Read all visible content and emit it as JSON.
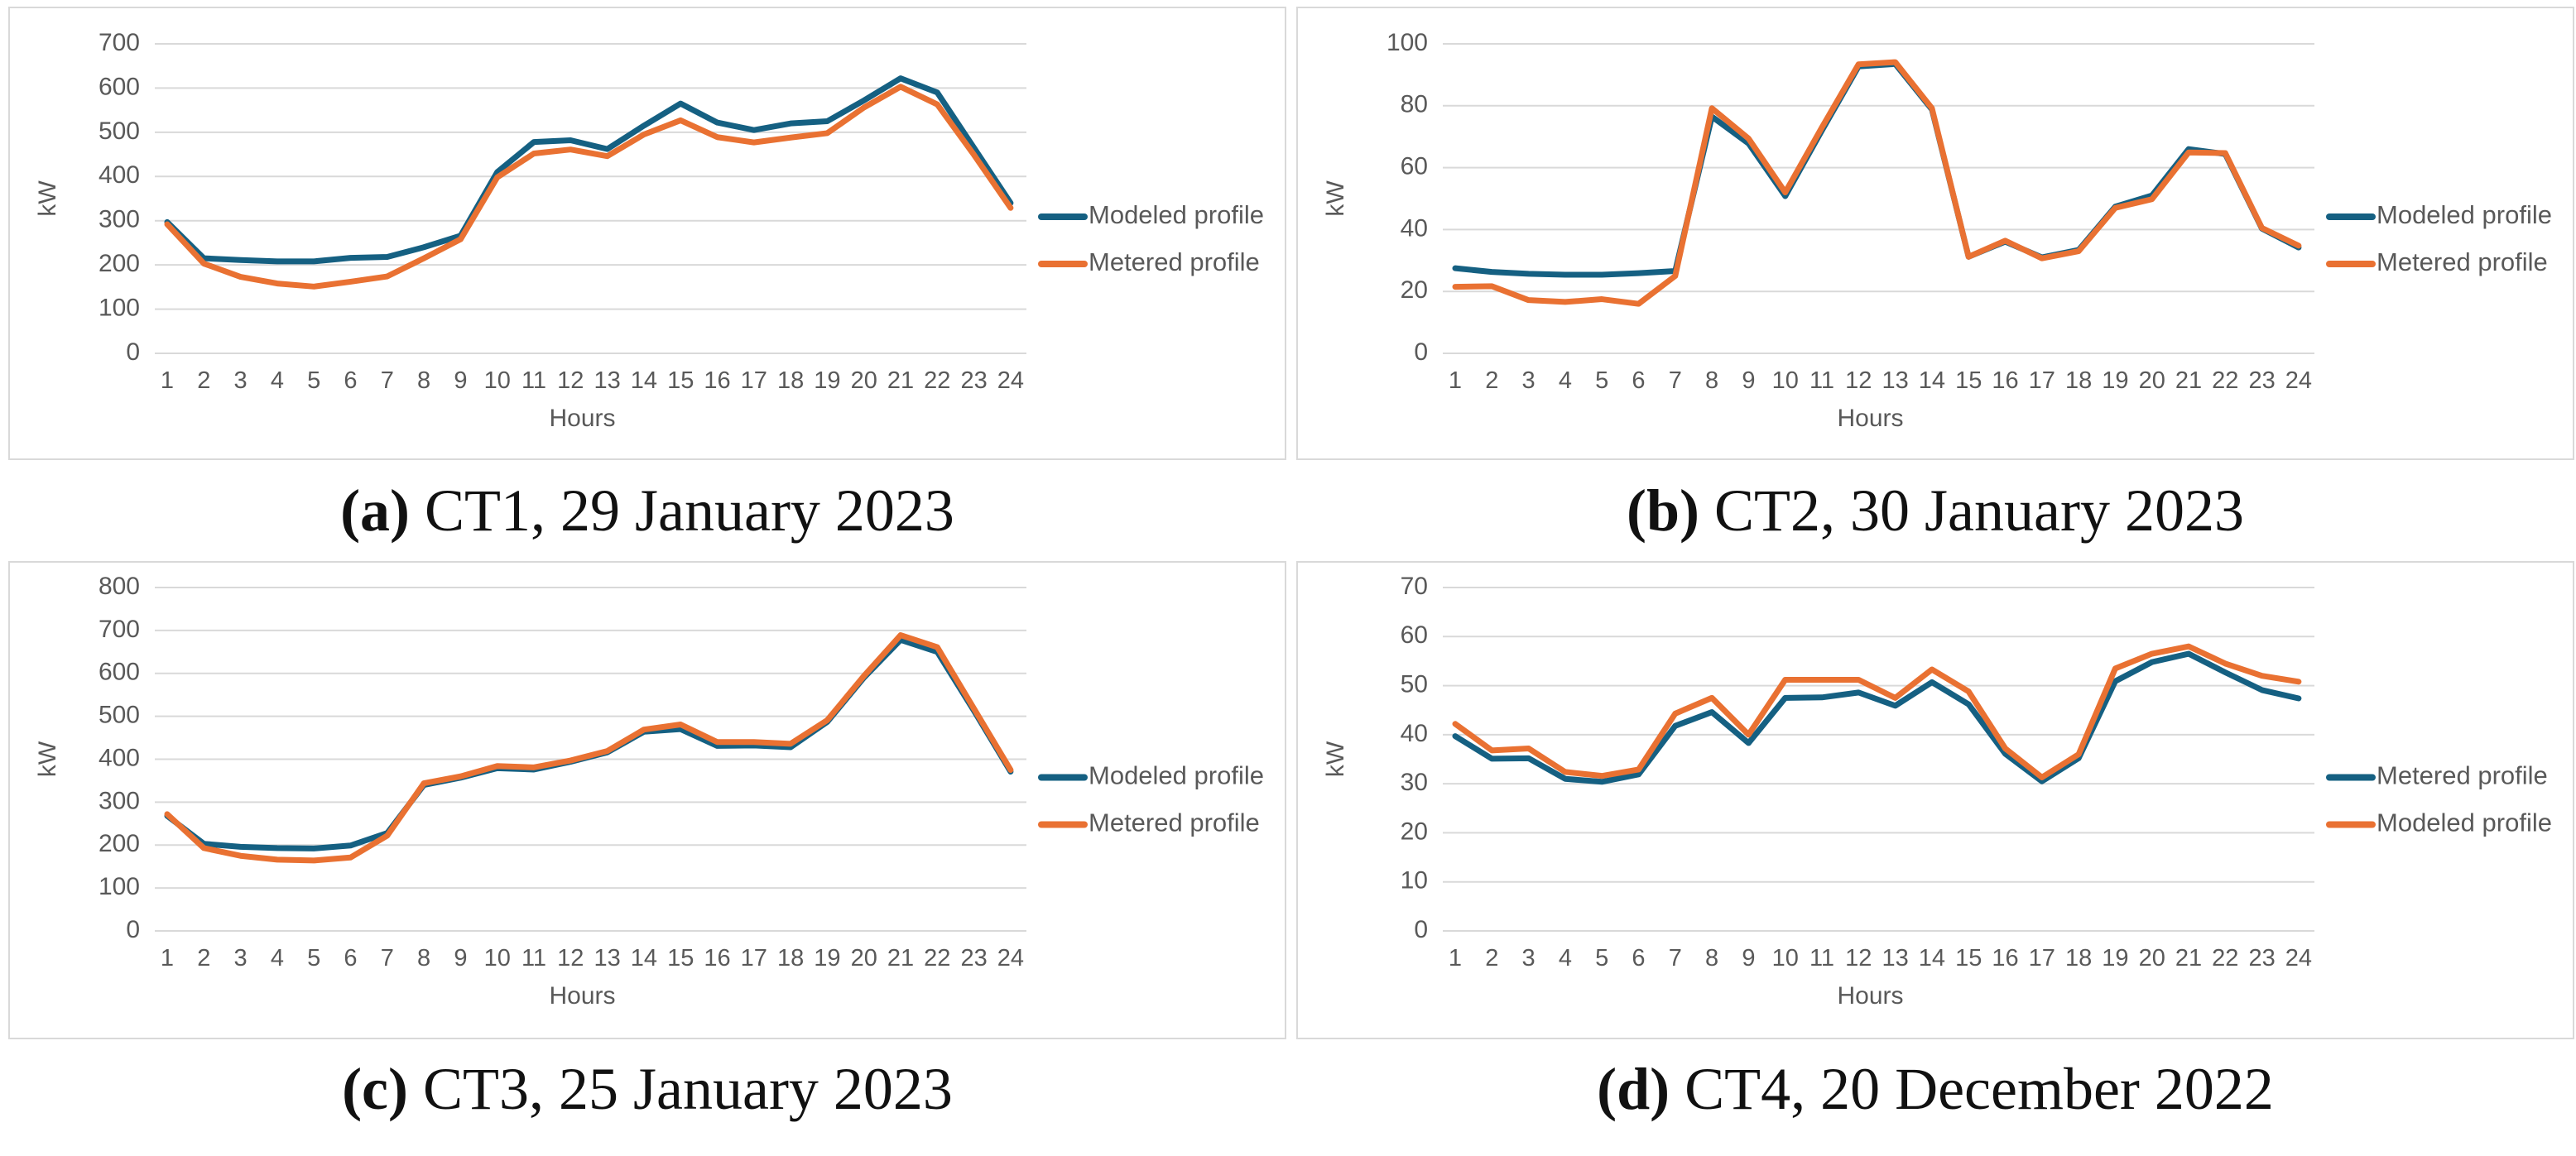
{
  "figure": {
    "unit": "kW",
    "x_axis_title": "Hours",
    "background": "#ffffff"
  },
  "colors": {
    "teal_line": "#156082",
    "orange_line": "#E97132",
    "gridline": "#D9D9D9",
    "axis_text": "#595959",
    "card_border": "#D9D9D9",
    "caption_text": "#111111"
  },
  "chart_data": [
    {
      "type": "line",
      "panel": "a",
      "caption": {
        "bold": "(a)",
        "text": " CT1, 29 January 2023"
      },
      "xlabel": "Hours",
      "ylabel": "kW",
      "ylim": [
        0,
        700
      ],
      "ytick_step": 100,
      "yticks": [
        0,
        100,
        200,
        300,
        400,
        500,
        600,
        700
      ],
      "grid": true,
      "legend_position": "right",
      "x": [
        1,
        2,
        3,
        4,
        5,
        6,
        7,
        8,
        9,
        10,
        11,
        12,
        13,
        14,
        15,
        16,
        17,
        18,
        19,
        20,
        21,
        22,
        23,
        24
      ],
      "series": [
        {
          "name": "Modeled profile",
          "color_key": "teal_line",
          "values": [
            297,
            215,
            211,
            208,
            208,
            216,
            218,
            240,
            266,
            410,
            478,
            482,
            462,
            515,
            565,
            522,
            505,
            520,
            525,
            572,
            622,
            590,
            465,
            340
          ]
        },
        {
          "name": "Metered profile",
          "color_key": "orange_line",
          "values": [
            292,
            203,
            173,
            158,
            151,
            162,
            174,
            215,
            258,
            398,
            452,
            461,
            446,
            495,
            527,
            489,
            477,
            488,
            498,
            556,
            603,
            563,
            449,
            329
          ]
        }
      ]
    },
    {
      "type": "line",
      "panel": "b",
      "caption": {
        "bold": "(b)",
        "text": " CT2, 30 January 2023"
      },
      "xlabel": "Hours",
      "ylabel": "kW",
      "ylim": [
        0,
        100
      ],
      "ytick_step": 20,
      "yticks": [
        0,
        20,
        40,
        60,
        80,
        100
      ],
      "grid": true,
      "legend_position": "right",
      "x": [
        1,
        2,
        3,
        4,
        5,
        6,
        7,
        8,
        9,
        10,
        11,
        12,
        13,
        14,
        15,
        16,
        17,
        18,
        19,
        20,
        21,
        22,
        23,
        24
      ],
      "series": [
        {
          "name": "Modeled profile",
          "color_key": "teal_line",
          "values": [
            27.5,
            26.3,
            25.7,
            25.4,
            25.4,
            25.9,
            26.6,
            76.5,
            67.8,
            50.8,
            72.0,
            92.7,
            93.5,
            78.8,
            31.2,
            36.1,
            31.0,
            33.4,
            47.4,
            51.0,
            66.0,
            64.4,
            40.3,
            34.2
          ]
        },
        {
          "name": "Metered profile",
          "color_key": "orange_line",
          "values": [
            21.5,
            21.7,
            17.2,
            16.6,
            17.5,
            16.0,
            25.0,
            79.2,
            69.4,
            52.0,
            73.0,
            93.4,
            94.1,
            79.2,
            31.2,
            36.4,
            30.7,
            33.0,
            47.0,
            49.8,
            64.9,
            64.7,
            40.5,
            34.8
          ]
        }
      ]
    },
    {
      "type": "line",
      "panel": "c",
      "caption": {
        "bold": "(c)",
        "text": " CT3, 25 January 2023"
      },
      "xlabel": "Hours",
      "ylabel": "kW",
      "ylim": [
        0,
        800
      ],
      "ytick_step": 100,
      "yticks": [
        0,
        100,
        200,
        300,
        400,
        500,
        600,
        700,
        800
      ],
      "grid": true,
      "legend_position": "right",
      "x": [
        1,
        2,
        3,
        4,
        5,
        6,
        7,
        8,
        9,
        10,
        11,
        12,
        13,
        14,
        15,
        16,
        17,
        18,
        19,
        20,
        21,
        22,
        23,
        24
      ],
      "series": [
        {
          "name": "Modeled profile",
          "color_key": "teal_line",
          "values": [
            268,
            203,
            196,
            193,
            192,
            199,
            228,
            340,
            357,
            379,
            376,
            394,
            416,
            464,
            470,
            431,
            432,
            428,
            487,
            590,
            678,
            650,
            513,
            371
          ]
        },
        {
          "name": "Metered profile",
          "color_key": "orange_line",
          "values": [
            272,
            193,
            175,
            166,
            164,
            171,
            222,
            344,
            360,
            384,
            381,
            397,
            419,
            469,
            481,
            440,
            440,
            436,
            491,
            594,
            689,
            661,
            518,
            375
          ]
        }
      ]
    },
    {
      "type": "line",
      "panel": "d",
      "caption": {
        "bold": "(d)",
        "text": " CT4, 20 December 2022"
      },
      "xlabel": "Hours",
      "ylabel": "kW",
      "ylim": [
        0,
        70
      ],
      "ytick_step": 10,
      "yticks": [
        0,
        10,
        20,
        30,
        40,
        50,
        60,
        70
      ],
      "grid": true,
      "legend_position": "right",
      "x": [
        1,
        2,
        3,
        4,
        5,
        6,
        7,
        8,
        9,
        10,
        11,
        12,
        13,
        14,
        15,
        16,
        17,
        18,
        19,
        20,
        21,
        22,
        23,
        24
      ],
      "series": [
        {
          "name": "Metered profile",
          "color_key": "teal_line",
          "values": [
            39.7,
            35.1,
            35.2,
            31.0,
            30.4,
            31.9,
            41.8,
            44.6,
            38.3,
            47.5,
            47.6,
            48.6,
            45.9,
            50.7,
            46.2,
            36.1,
            30.5,
            35.2,
            50.9,
            54.8,
            56.5,
            52.7,
            49.1,
            47.4
          ]
        },
        {
          "name": "Modeled profile",
          "color_key": "orange_line",
          "values": [
            42.2,
            36.8,
            37.2,
            32.4,
            31.6,
            32.9,
            44.3,
            47.5,
            40.0,
            51.2,
            51.2,
            51.2,
            47.5,
            53.3,
            48.8,
            37.2,
            31.3,
            36.0,
            53.5,
            56.5,
            58.0,
            54.5,
            52.0,
            50.8
          ]
        }
      ]
    }
  ]
}
